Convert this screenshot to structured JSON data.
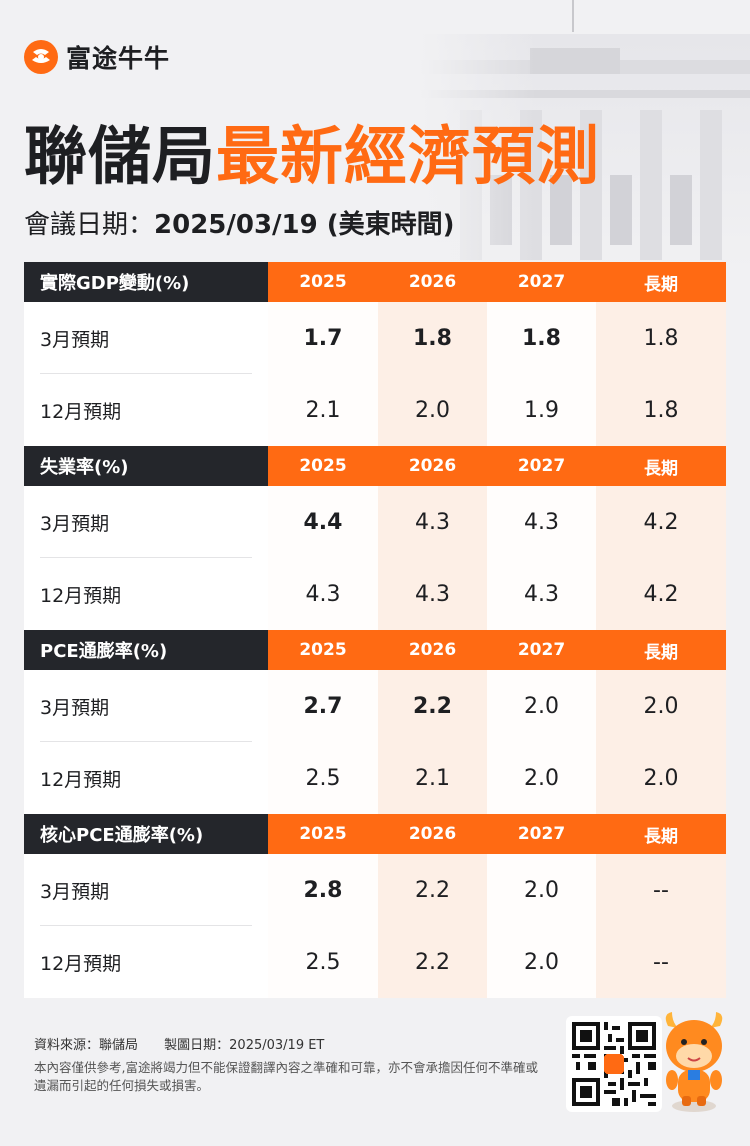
{
  "brand": {
    "name": "富途牛牛",
    "accent": "#ff6a13",
    "dark": "#24262b"
  },
  "title": {
    "part1": "聯儲局",
    "part2": "最新經濟預測"
  },
  "meeting": {
    "label": "會議日期：",
    "value": "2025/03/19 (美東時間)"
  },
  "sections": [
    {
      "label": "實際GDP變動(%)",
      "years": [
        "2025",
        "2026",
        "2027",
        "長期"
      ],
      "rows": [
        {
          "label": "3月預期",
          "values": [
            "1.7",
            "1.8",
            "1.8",
            "1.8"
          ]
        },
        {
          "label": "12月預期",
          "values": [
            "2.1",
            "2.0",
            "1.9",
            "1.8"
          ]
        }
      ]
    },
    {
      "label": "失業率(%)",
      "years": [
        "2025",
        "2026",
        "2027",
        "長期"
      ],
      "rows": [
        {
          "label": "3月預期",
          "values": [
            "4.4",
            "4.3",
            "4.3",
            "4.2"
          ]
        },
        {
          "label": "12月預期",
          "values": [
            "4.3",
            "4.3",
            "4.3",
            "4.2"
          ]
        }
      ]
    },
    {
      "label": "PCE通膨率(%)",
      "years": [
        "2025",
        "2026",
        "2027",
        "長期"
      ],
      "rows": [
        {
          "label": "3月預期",
          "values": [
            "2.7",
            "2.2",
            "2.0",
            "2.0"
          ]
        },
        {
          "label": "12月預期",
          "values": [
            "2.5",
            "2.1",
            "2.0",
            "2.0"
          ]
        }
      ]
    },
    {
      "label": "核心PCE通膨率(%)",
      "years": [
        "2025",
        "2026",
        "2027",
        "長期"
      ],
      "rows": [
        {
          "label": "3月預期",
          "values": [
            "2.8",
            "2.2",
            "2.0",
            "--"
          ]
        },
        {
          "label": "12月預期",
          "values": [
            "2.5",
            "2.2",
            "2.0",
            "--"
          ]
        }
      ]
    }
  ],
  "footer": {
    "source": "資料來源：聯儲局",
    "made": "製圖日期：2025/03/19 ET",
    "disclaimer": "本內容僅供參考,富途將竭力但不能保證翻譯內容之準確和可靠，亦不會承擔因任何不準確或遺漏而引起的任何損失或損害。"
  }
}
